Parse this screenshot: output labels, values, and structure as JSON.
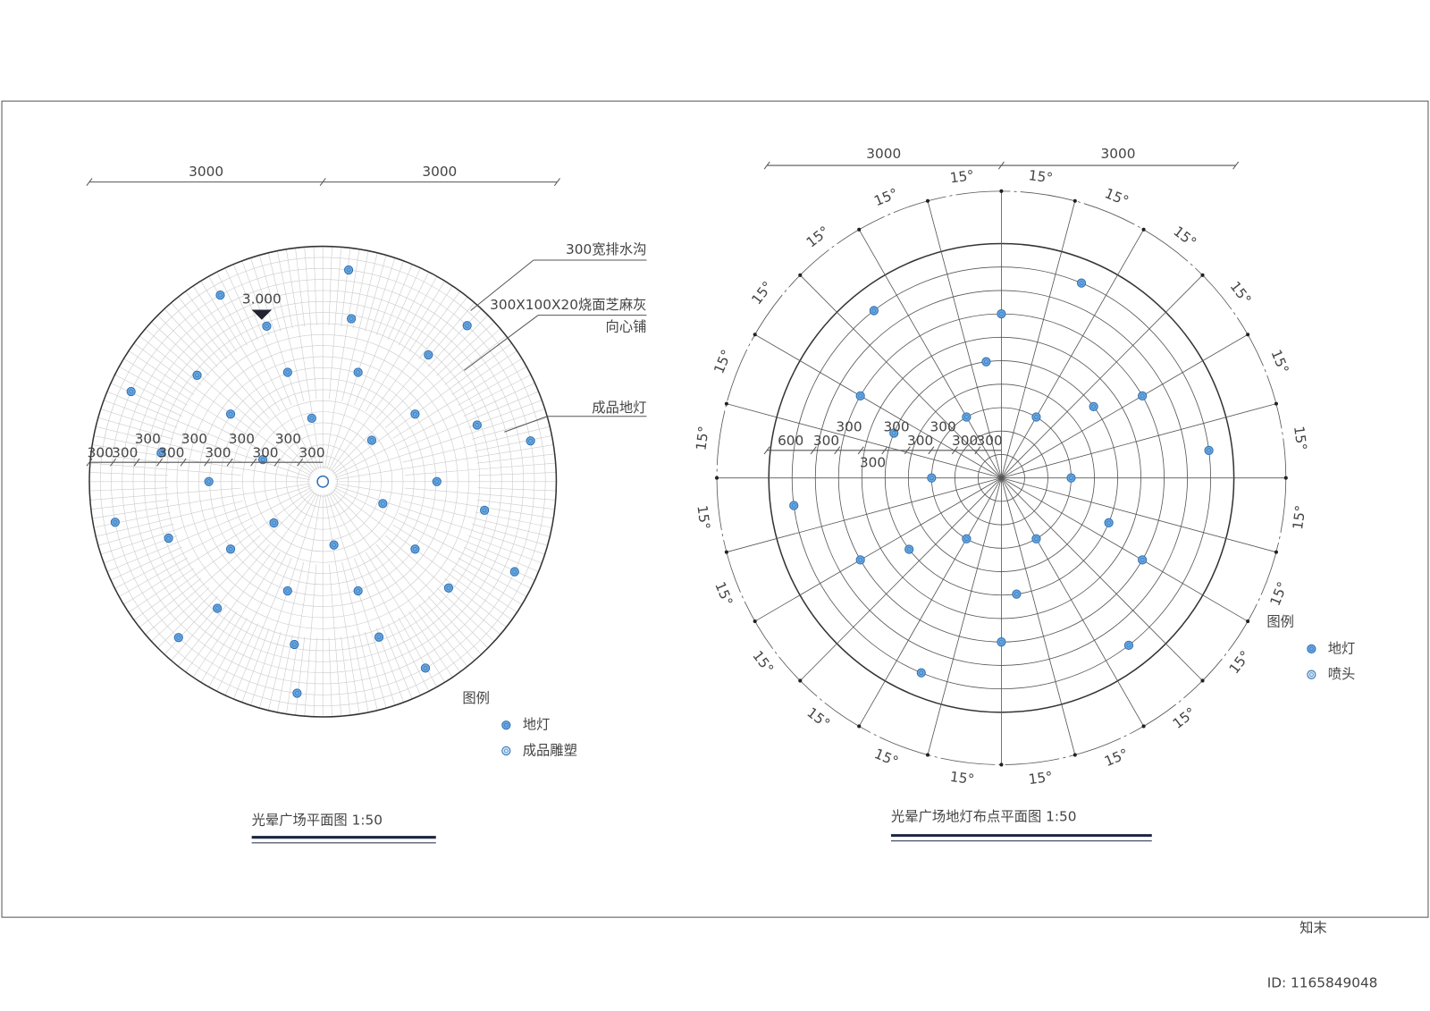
{
  "left": {
    "dims_top": [
      "3000",
      "3000"
    ],
    "elevation": "3.000",
    "notes": [
      "300宽排水沟",
      "300X100X20烧面芝麻灰",
      "向心铺",
      "成品地灯"
    ],
    "radial_dims": [
      "300",
      "300",
      "300",
      "300",
      "300",
      "300",
      "300",
      "300",
      "300",
      "300"
    ],
    "legend": {
      "title": "图例",
      "items": [
        "地灯",
        "成品雕塑"
      ]
    },
    "title": "光晕广场平面图 1:50"
  },
  "right": {
    "dims_top": [
      "3000",
      "3000"
    ],
    "angles": [
      "15°",
      "15°",
      "15°",
      "15°",
      "15°",
      "15°",
      "15°",
      "15°",
      "15°",
      "15°",
      "15°",
      "15°",
      "15°",
      "15°",
      "15°",
      "15°",
      "15°",
      "15°",
      "15°",
      "15°",
      "15°",
      "15°",
      "15°",
      "15°"
    ],
    "radial_dims": [
      "600",
      "300",
      "300",
      "300",
      "300",
      "300",
      "300",
      "300",
      "300"
    ],
    "legend": {
      "title": "图例",
      "items": [
        "地灯",
        "喷头"
      ]
    },
    "title": "光晕广场地灯布点平面图 1:50"
  },
  "watermark": {
    "brand": "知末",
    "id": "ID: 1165849048"
  }
}
